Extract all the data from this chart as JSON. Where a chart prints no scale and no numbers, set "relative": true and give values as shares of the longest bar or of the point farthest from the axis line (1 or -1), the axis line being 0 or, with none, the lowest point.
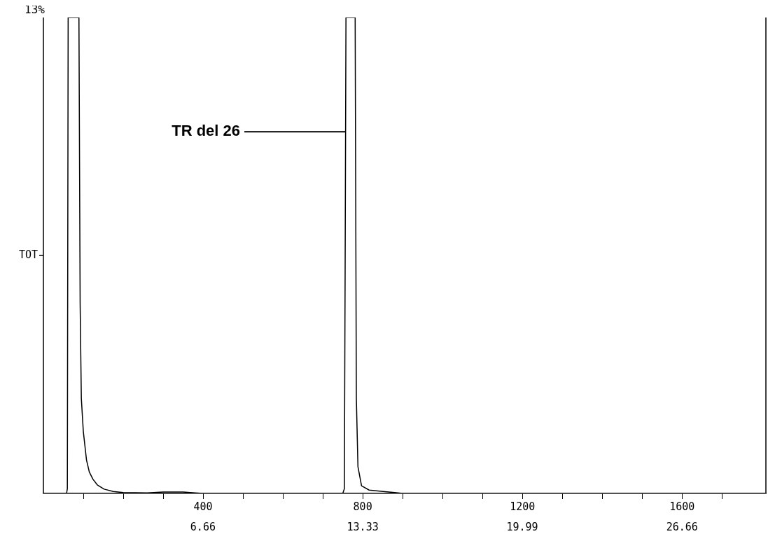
{
  "chart_data": {
    "type": "line",
    "relative": true,
    "ylabel": "TOT",
    "color": "#000000",
    "grid": false,
    "marker": "none",
    "line_style": "solid",
    "legend": false,
    "xlim": [
      0,
      1810
    ],
    "xticks": [
      {
        "value": 100,
        "label": null
      },
      {
        "value": 200,
        "label": null
      },
      {
        "value": 300,
        "label": null
      },
      400,
      {
        "value": 500,
        "label": null
      },
      {
        "value": 600,
        "label": null
      },
      {
        "value": 700,
        "label": null
      },
      800,
      {
        "value": 900,
        "label": null
      },
      {
        "value": 1000,
        "label": null
      },
      {
        "value": 1100,
        "label": null
      },
      1200,
      {
        "value": 1300,
        "label": null
      },
      {
        "value": 1400,
        "label": null
      },
      {
        "value": 1500,
        "label": null
      },
      1600,
      {
        "value": 1700,
        "label": null
      }
    ],
    "x2lim": [
      0,
      30.16
    ],
    "x2ticks": [
      6.66,
      13.33,
      19.99,
      26.66
    ],
    "annotations": [
      "13%",
      {
        "text": "TR del 26",
        "x": 756,
        "y": 0.76
      }
    ],
    "x": [
      0,
      58,
      60,
      62,
      89,
      92,
      95,
      100,
      108,
      115,
      124,
      135,
      152,
      175,
      200,
      260,
      300,
      350,
      380,
      400,
      750,
      754,
      756,
      758,
      781,
      784,
      788,
      797,
      816,
      851,
      880,
      900,
      1810
    ],
    "values": [
      0,
      0,
      0.01,
      1,
      1,
      0.4,
      0.2,
      0.13,
      0.07,
      0.045,
      0.03,
      0.018,
      0.009,
      0.004,
      0.002,
      0.001,
      0.003,
      0.003,
      0.001,
      0,
      0,
      0.01,
      0.5,
      1,
      1,
      0.2,
      0.056,
      0.016,
      0.007,
      0.004,
      0.002,
      0,
      0
    ]
  }
}
